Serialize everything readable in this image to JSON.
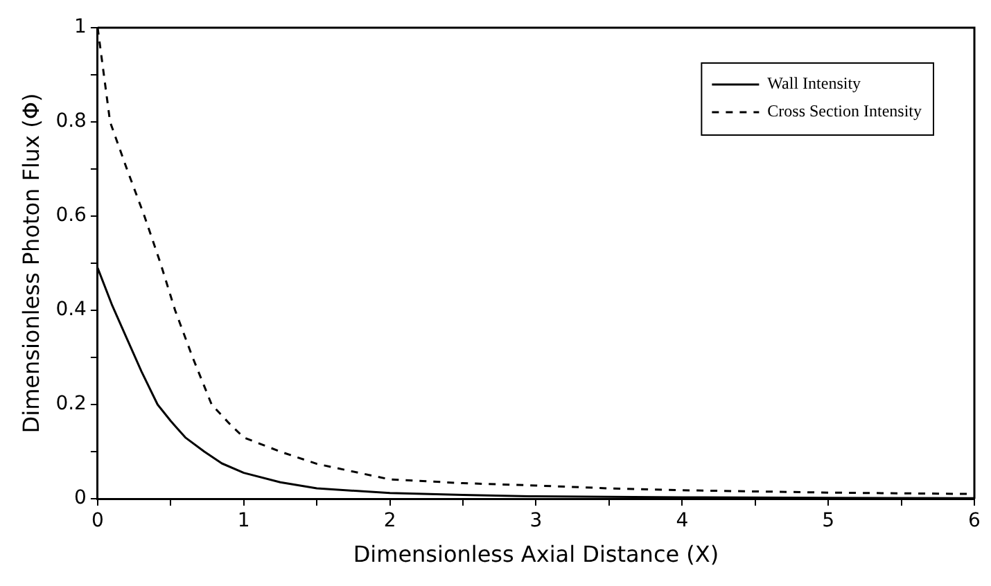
{
  "chart_data": {
    "type": "line",
    "xlabel": "Dimensionless Axial Distance (X)",
    "ylabel": "Dimensionless Photon Flux (Φ)",
    "xlim": [
      0,
      6
    ],
    "ylim": [
      0,
      1
    ],
    "xticks": [
      0,
      {
        "value": 0.5,
        "label": null
      },
      1,
      {
        "value": 1.5,
        "label": null
      },
      2,
      {
        "value": 2.5,
        "label": null
      },
      3,
      {
        "value": 3.5,
        "label": null
      },
      4,
      {
        "value": 4.5,
        "label": null
      },
      5,
      {
        "value": 5.5,
        "label": null
      },
      6
    ],
    "yticks": [
      0,
      {
        "value": 0.1,
        "label": null
      },
      0.2,
      {
        "value": 0.3,
        "label": null
      },
      0.4,
      {
        "value": 0.5,
        "label": null
      },
      0.6,
      {
        "value": 0.7,
        "label": null
      },
      0.8,
      {
        "value": 0.9,
        "label": null
      },
      1
    ],
    "grid": false,
    "legend": "top right",
    "marker": "none",
    "series": [
      {
        "name": "Wall Intensity",
        "color": "#000000",
        "line_style": "solid",
        "x": [
          0,
          0.1,
          0.2,
          0.3,
          0.41,
          0.5,
          0.6,
          0.73,
          0.85,
          1,
          1.25,
          1.5,
          2,
          2.5,
          3,
          4,
          5,
          6
        ],
        "values": [
          0.49,
          0.41,
          0.34,
          0.27,
          0.2,
          0.165,
          0.13,
          0.1,
          0.075,
          0.055,
          0.035,
          0.022,
          0.012,
          0.008,
          0.005,
          0.003,
          0.002,
          0.001
        ]
      },
      {
        "name": "Cross Section Intensity",
        "color": "#000000",
        "line_style": "dashed",
        "x": [
          0,
          0.085,
          0.2,
          0.32,
          0.43,
          0.53,
          0.65,
          0.78,
          0.9,
          1,
          1.25,
          1.5,
          2,
          2.5,
          3,
          3.5,
          4,
          5,
          6
        ],
        "values": [
          1,
          0.8,
          0.7,
          0.6,
          0.5,
          0.4,
          0.3,
          0.2,
          0.16,
          0.13,
          0.1,
          0.074,
          0.041,
          0.033,
          0.028,
          0.022,
          0.018,
          0.013,
          0.01
        ]
      }
    ]
  }
}
